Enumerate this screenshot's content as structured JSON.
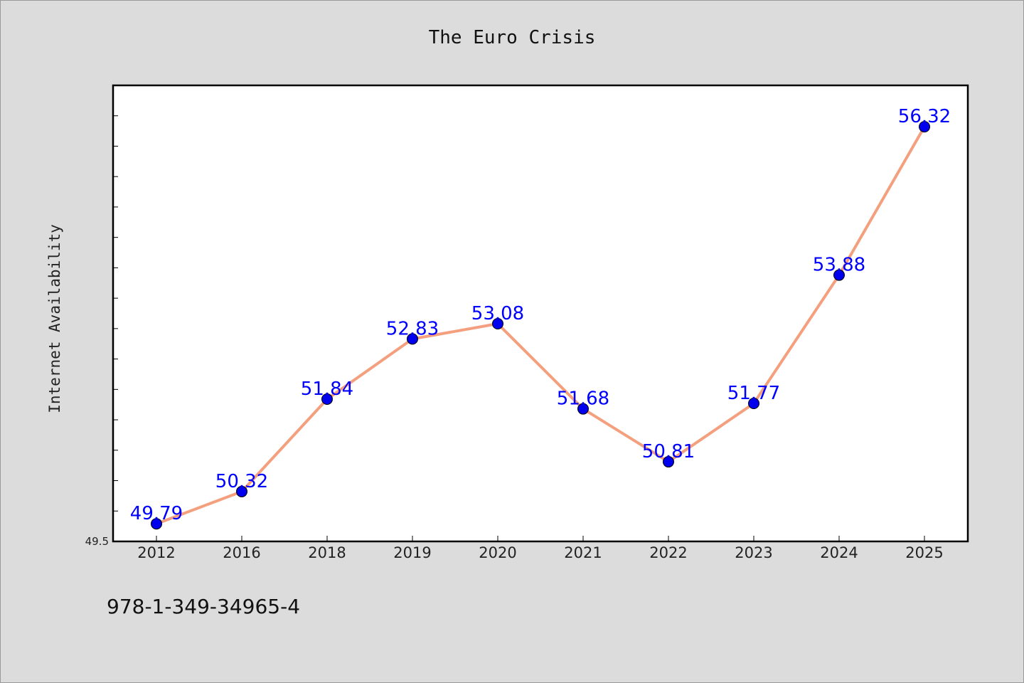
{
  "chart_data": {
    "type": "line",
    "title": "The Euro Crisis",
    "xlabel": "",
    "ylabel": "Internet Availability",
    "categories": [
      "2012",
      "2016",
      "2018",
      "2019",
      "2020",
      "2021",
      "2022",
      "2023",
      "2024",
      "2025"
    ],
    "series": [
      {
        "values": [
          49.79,
          50.32,
          51.84,
          52.83,
          53.08,
          51.68,
          50.81,
          51.77,
          53.88,
          56.32
        ],
        "labels": [
          "49.79",
          "50.32",
          "51.84",
          "52.83",
          "53.08",
          "51.68",
          "50.81",
          "51.77",
          "53.88",
          "56.32"
        ],
        "line_color": "#f4a07e",
        "marker_color": "#0000ee",
        "label_color": "#0000ff"
      }
    ],
    "ylim": [
      49.5,
      57.0
    ],
    "y_tick_labels": [
      "49.5"
    ],
    "y_minor_tick_step": 0.5,
    "grid": false,
    "legend": "none"
  },
  "footer": {
    "code": "978-1-349-34965-4"
  }
}
